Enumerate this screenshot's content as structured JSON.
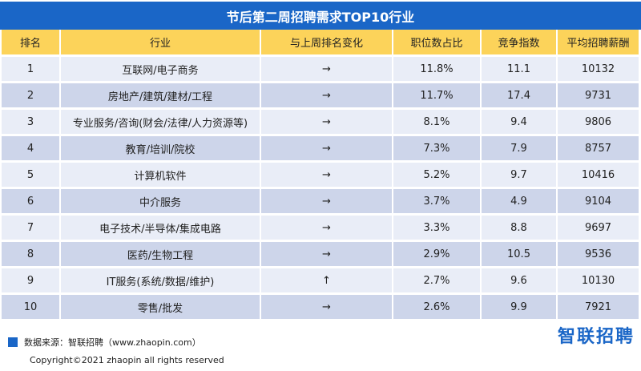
{
  "title": "节后第二周招聘需求TOP10行业",
  "columns": [
    "排名",
    "行业",
    "与上周排名变化",
    "职位数占比",
    "竞争指数",
    "平均招聘薪酬"
  ],
  "rows": [
    {
      "rank": "1",
      "industry": "互联网/电子商务",
      "change": "→",
      "share": "11.8%",
      "competition": "11.1",
      "salary": "10132"
    },
    {
      "rank": "2",
      "industry": "房地产/建筑/建材/工程",
      "change": "→",
      "share": "11.7%",
      "competition": "17.4",
      "salary": "9731"
    },
    {
      "rank": "3",
      "industry": "专业服务/咨询(财会/法律/人力资源等)",
      "change": "→",
      "share": "8.1%",
      "competition": "9.4",
      "salary": "9806"
    },
    {
      "rank": "4",
      "industry": "教育/培训/院校",
      "change": "→",
      "share": "7.3%",
      "competition": "7.9",
      "salary": "8757"
    },
    {
      "rank": "5",
      "industry": "计算机软件",
      "change": "→",
      "share": "5.2%",
      "competition": "9.7",
      "salary": "10416"
    },
    {
      "rank": "6",
      "industry": "中介服务",
      "change": "→",
      "share": "3.7%",
      "competition": "4.9",
      "salary": "9104"
    },
    {
      "rank": "7",
      "industry": "电子技术/半导体/集成电路",
      "change": "→",
      "share": "3.3%",
      "competition": "8.8",
      "salary": "9697"
    },
    {
      "rank": "8",
      "industry": "医药/生物工程",
      "change": "→",
      "share": "2.9%",
      "competition": "10.5",
      "salary": "9536"
    },
    {
      "rank": "9",
      "industry": "IT服务(系统/数据/维护)",
      "change": "↑",
      "share": "2.7%",
      "competition": "9.6",
      "salary": "10130"
    },
    {
      "rank": "10",
      "industry": "零售/批发",
      "change": "→",
      "share": "2.6%",
      "competition": "9.9",
      "salary": "7921"
    }
  ],
  "footer": {
    "source": "数据来源：智联招聘（www.zhaopin.com）",
    "copyright": "Copyright©2021 zhaopin all rights reserved",
    "logo": "智联招聘"
  },
  "colors": {
    "title_bg": "#1a66c7",
    "header_bg": "#fcd35a",
    "row_light": "#e9edf7",
    "row_dark": "#cdd5ea"
  },
  "chart_data": {
    "type": "table",
    "title": "节后第二周招聘需求TOP10行业",
    "columns": [
      "排名",
      "行业",
      "与上周排名变化",
      "职位数占比",
      "竞争指数",
      "平均招聘薪酬"
    ],
    "rows": [
      [
        "1",
        "互联网/电子商务",
        "→",
        "11.8%",
        "11.1",
        "10132"
      ],
      [
        "2",
        "房地产/建筑/建材/工程",
        "→",
        "11.7%",
        "17.4",
        "9731"
      ],
      [
        "3",
        "专业服务/咨询(财会/法律/人力资源等)",
        "→",
        "8.1%",
        "9.4",
        "9806"
      ],
      [
        "4",
        "教育/培训/院校",
        "→",
        "7.3%",
        "7.9",
        "8757"
      ],
      [
        "5",
        "计算机软件",
        "→",
        "5.2%",
        "9.7",
        "10416"
      ],
      [
        "6",
        "中介服务",
        "→",
        "3.7%",
        "4.9",
        "9104"
      ],
      [
        "7",
        "电子技术/半导体/集成电路",
        "→",
        "3.3%",
        "8.8",
        "9697"
      ],
      [
        "8",
        "医药/生物工程",
        "→",
        "2.9%",
        "10.5",
        "9536"
      ],
      [
        "9",
        "IT服务(系统/数据/维护)",
        "↑",
        "2.7%",
        "9.6",
        "10130"
      ],
      [
        "10",
        "零售/批发",
        "→",
        "2.6%",
        "9.9",
        "7921"
      ]
    ]
  }
}
